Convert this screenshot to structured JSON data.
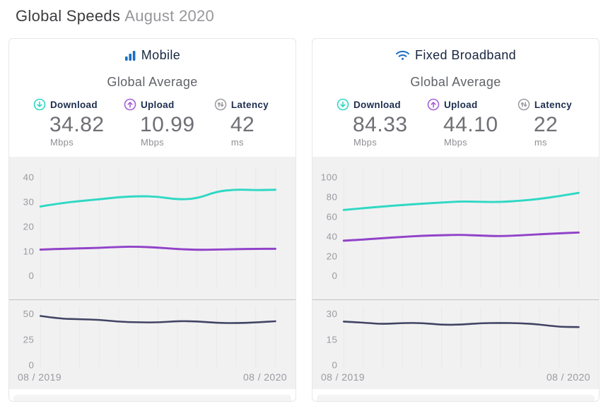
{
  "page": {
    "title": "Global Speeds",
    "subtitle": "August 2020"
  },
  "colors": {
    "accent_blue": "#1a6fc4",
    "download_teal": "#2fd8c3",
    "upload_purple": "#9143c8",
    "upload_icon_purple": "#a55fd6",
    "latency_line": "#414463",
    "latency_icon_gray": "#9a9aa0",
    "chart_background": "#f1f1f2",
    "tick_gray": "#9a9aa0"
  },
  "panels": [
    {
      "title": "Mobile",
      "icon": "signal-bars-icon",
      "subtitle": "Global Average",
      "metrics": [
        {
          "icon": "download-arrow-icon",
          "label": "Download",
          "value": "34.82",
          "unit": "Mbps"
        },
        {
          "icon": "upload-arrow-icon",
          "label": "Upload",
          "value": "10.99",
          "unit": "Mbps"
        },
        {
          "icon": "latency-arrows-icon",
          "label": "Latency",
          "value": "42",
          "unit": "ms"
        }
      ]
    },
    {
      "title": "Fixed Broadband",
      "icon": "wifi-icon",
      "subtitle": "Global Average",
      "metrics": [
        {
          "icon": "download-arrow-icon",
          "label": "Download",
          "value": "84.33",
          "unit": "Mbps"
        },
        {
          "icon": "upload-arrow-icon",
          "label": "Upload",
          "value": "44.10",
          "unit": "Mbps"
        },
        {
          "icon": "latency-arrows-icon",
          "label": "Latency",
          "value": "22",
          "unit": "ms"
        }
      ]
    }
  ],
  "chart_data": [
    {
      "id": "mobile-speeds",
      "type": "line",
      "kind": "speed",
      "panel": "Mobile",
      "ylabel": "Mbps",
      "ylim": [
        0,
        44
      ],
      "yticks": [
        0,
        10,
        20,
        30,
        40
      ],
      "grid": "vertical-faint",
      "legend": "none",
      "x_start_label": "08 / 2019",
      "x_end_label": "08 / 2020",
      "series": [
        {
          "name": "Download",
          "color": "#2fd8c3",
          "values": [
            28.2,
            29.5,
            30.4,
            31.1,
            32.0,
            32.4,
            32.2,
            31.0,
            31.4,
            34.3,
            35.1,
            34.8,
            35.0
          ]
        },
        {
          "name": "Upload",
          "color": "#9143c8",
          "values": [
            10.7,
            11.0,
            11.2,
            11.4,
            11.8,
            11.9,
            11.5,
            10.9,
            10.6,
            10.7,
            10.9,
            11.0,
            11.0
          ]
        }
      ]
    },
    {
      "id": "mobile-latency",
      "type": "line",
      "kind": "latency",
      "panel": "Mobile",
      "ylabel": "ms",
      "ylim": [
        0,
        55
      ],
      "yticks": [
        0,
        25,
        50
      ],
      "grid": "vertical-faint",
      "legend": "none",
      "x_start_label": "08 / 2019",
      "x_end_label": "08 / 2020",
      "series": [
        {
          "name": "Latency",
          "color": "#414463",
          "values": [
            48,
            45.3,
            44.8,
            44.3,
            42.3,
            41.8,
            41.6,
            43.0,
            42.7,
            41.2,
            41.0,
            41.6,
            42.8
          ]
        }
      ]
    },
    {
      "id": "fixed-speeds",
      "type": "line",
      "kind": "speed",
      "panel": "Fixed Broadband",
      "ylabel": "Mbps",
      "ylim": [
        0,
        110
      ],
      "yticks": [
        0,
        20,
        40,
        60,
        80,
        100
      ],
      "grid": "vertical-faint",
      "legend": "none",
      "x_start_label": "08 / 2019",
      "x_end_label": "08 / 2020",
      "series": [
        {
          "name": "Download",
          "color": "#2fd8c3",
          "values": [
            67,
            68.8,
            70.5,
            72,
            73.4,
            74.5,
            75.7,
            75.2,
            75.0,
            76.2,
            78.2,
            81.0,
            84.3
          ]
        },
        {
          "name": "Upload",
          "color": "#9143c8",
          "values": [
            35.8,
            37.0,
            38.4,
            39.6,
            40.8,
            41.3,
            41.8,
            40.9,
            40.3,
            41.2,
            42.3,
            43.2,
            44.1
          ]
        }
      ]
    },
    {
      "id": "fixed-latency",
      "type": "line",
      "kind": "latency",
      "panel": "Fixed Broadband",
      "ylabel": "ms",
      "ylim": [
        0,
        33
      ],
      "yticks": [
        0,
        15,
        30
      ],
      "grid": "vertical-faint",
      "legend": "none",
      "x_start_label": "08 / 2019",
      "x_end_label": "08 / 2020",
      "series": [
        {
          "name": "Latency",
          "color": "#414463",
          "values": [
            25.5,
            24.9,
            24.0,
            24.7,
            24.7,
            23.6,
            23.7,
            24.6,
            24.7,
            24.6,
            23.8,
            22.4,
            22.3
          ]
        }
      ]
    }
  ]
}
